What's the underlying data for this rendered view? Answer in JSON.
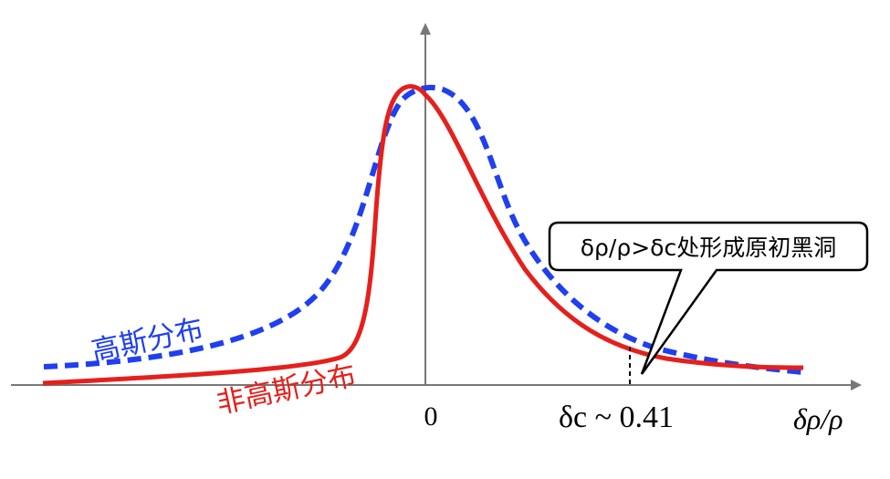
{
  "chart_data": {
    "type": "line",
    "x_axis": {
      "label": "δρ/ρ",
      "tick_labels": [
        "0"
      ]
    },
    "series": [
      {
        "name": "高斯分布",
        "style": "dashed",
        "color": "#1f3ff0",
        "points": [
          [
            -1.0,
            0.06
          ],
          [
            -0.6,
            0.1
          ],
          [
            -0.3,
            0.22
          ],
          [
            -0.1,
            0.65
          ],
          [
            0.0,
            0.99
          ],
          [
            0.1,
            0.85
          ],
          [
            0.2,
            0.52
          ],
          [
            0.41,
            0.13
          ],
          [
            0.6,
            0.06
          ],
          [
            0.9,
            0.03
          ]
        ]
      },
      {
        "name": "非高斯分布",
        "style": "solid",
        "color": "#e5201c",
        "points": [
          [
            -1.0,
            0.0
          ],
          [
            -0.5,
            0.04
          ],
          [
            -0.2,
            0.1
          ],
          [
            -0.08,
            0.7
          ],
          [
            -0.04,
            0.99
          ],
          [
            0.0,
            0.93
          ],
          [
            0.1,
            0.65
          ],
          [
            0.2,
            0.35
          ],
          [
            0.41,
            0.1
          ],
          [
            0.6,
            0.06
          ],
          [
            0.9,
            0.05
          ]
        ]
      }
    ],
    "threshold": {
      "label": "δc ~ 0.41",
      "x": 0.41
    },
    "annotation": {
      "text": "δρ/ρ>δc处形成原初黑洞"
    }
  }
}
